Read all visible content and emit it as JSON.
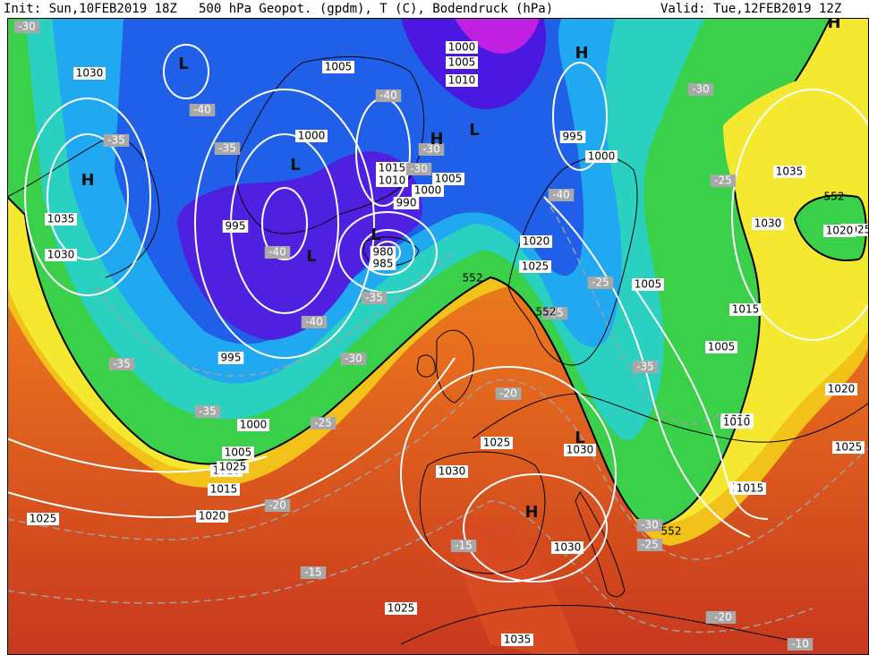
{
  "header": {
    "init": "Init: Sun,10FEB2019 18Z",
    "description": "500 hPa Geopot. (gpdm), T (C), Bodendruck (hPa)",
    "valid": "Valid: Tue,12FEB2019 12Z"
  },
  "pressure_labels": [
    "1030",
    "1035",
    "1030",
    "1005",
    "1000",
    "1005",
    "1010",
    "1000",
    "1015",
    "1010",
    "1005",
    "1000",
    "995",
    "990",
    "985",
    "980",
    "995",
    "1000",
    "1005",
    "1015",
    "1020",
    "1025",
    "1000",
    "995",
    "1005",
    "1010",
    "1015",
    "1020",
    "1025",
    "1035",
    "1030",
    "1025",
    "1030",
    "1025",
    "1025",
    "1035",
    "1030",
    "1015",
    "1020",
    "1005",
    "1010",
    "1015",
    "1025",
    "1020",
    "1030",
    "1025",
    "1010",
    "1005",
    "1015",
    "1025"
  ],
  "temperature_labels": [
    "-30",
    "-40",
    "-35",
    "-35",
    "-40",
    "-40",
    "-30",
    "-30",
    "-40",
    "-35",
    "-35",
    "-40",
    "-35",
    "-30",
    "-25",
    "-20",
    "-30",
    "-25",
    "-35",
    "-25",
    "-30",
    "-25",
    "-20",
    "-20",
    "-15",
    "-15",
    "-20",
    "-10",
    "-30",
    "552",
    "552",
    "552",
    "552",
    "-25"
  ],
  "pressure_centers": [
    "L",
    "L",
    "L",
    "L",
    "L",
    "H",
    "H",
    "H",
    "H",
    "L",
    "H"
  ],
  "colors": {
    "pressure_isobar": "#ffffff",
    "temperature_isotherm": "#a0a0a0",
    "coastline": "#000000",
    "frame": "#000000"
  }
}
